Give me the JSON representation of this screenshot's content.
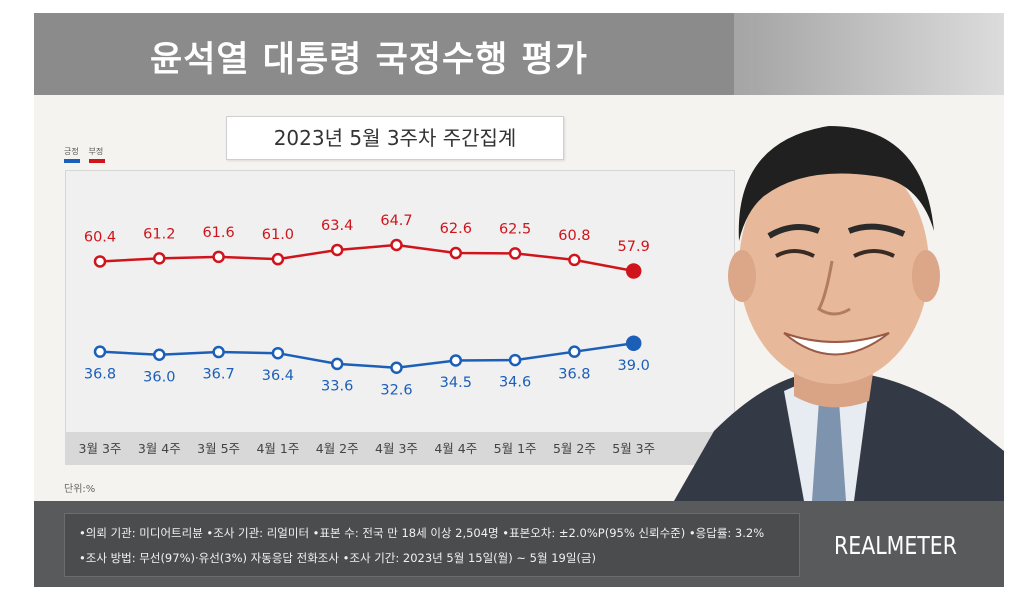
{
  "header": {
    "title": "윤석열 대통령 국정수행 평가",
    "subtitle": "2023년 5월 3주차 주간집계"
  },
  "legend": {
    "positive_label": "긍정",
    "negative_label": "부정"
  },
  "unit": "단위:%",
  "colors": {
    "negative": "#d0141b",
    "positive": "#1c5fb8"
  },
  "chart_data": {
    "type": "line",
    "title": "윤석열 대통령 국정수행 평가",
    "subtitle": "2023년 5월 3주차 주간집계",
    "categories": [
      "3월 3주",
      "3월 4주",
      "3월 5주",
      "4월 1주",
      "4월 2주",
      "4월 3주",
      "4월 4주",
      "5월 1주",
      "5월 2주",
      "5월 3주"
    ],
    "series": [
      {
        "name": "부정",
        "values": [
          60.4,
          61.2,
          61.6,
          61.0,
          63.4,
          64.7,
          62.6,
          62.5,
          60.8,
          57.9
        ],
        "labels": [
          "60.4",
          "61.2",
          "61.6",
          "61.0",
          "63.4",
          "64.7",
          "62.6",
          "62.5",
          "60.8",
          "57.9"
        ]
      },
      {
        "name": "긍정",
        "values": [
          36.8,
          36.0,
          36.7,
          36.4,
          33.6,
          32.6,
          34.5,
          34.6,
          36.8,
          39.0
        ],
        "labels": [
          "36.8",
          "36.0",
          "36.7",
          "36.4",
          "33.6",
          "32.6",
          "34.5",
          "34.6",
          "36.8",
          "39.0"
        ]
      }
    ],
    "ylabel": "단위:%",
    "legend": "top-left",
    "grid": false
  },
  "footer": {
    "line1": "•의뢰 기관: 미디어트리뷴 •조사 기관: 리얼미터 •표본 수: 전국 만 18세 이상 2,504명 •표본오차: ±2.0%P(95% 신뢰수준) •응답률: 3.2%",
    "line2": "•조사 방법: 무선(97%)·유선(3%) 자동응답 전화조사 •조사 기간: 2023년 5월 15일(월) ~ 5월 19일(금)",
    "brand": "REALMETER"
  }
}
